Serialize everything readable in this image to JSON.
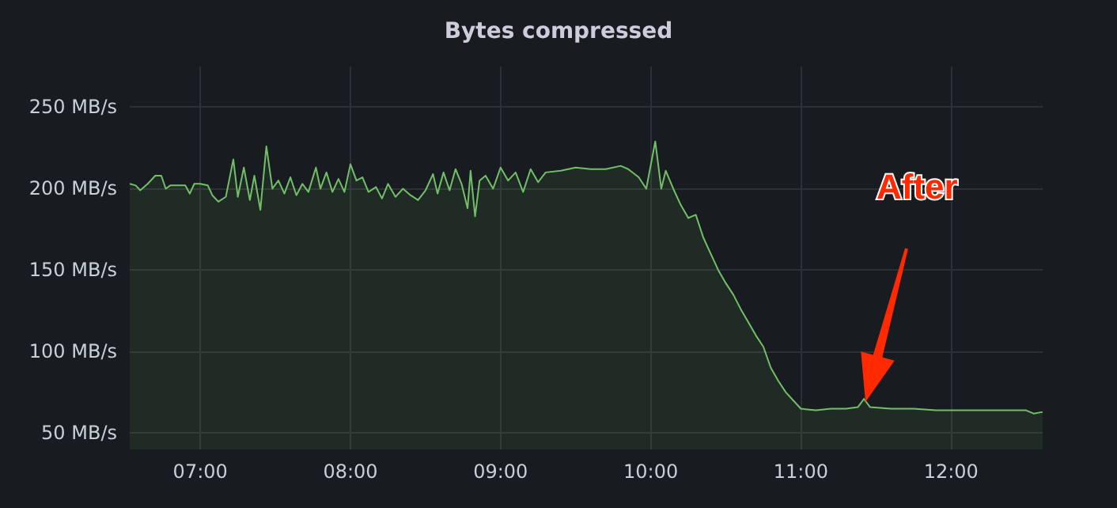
{
  "chart_data": {
    "type": "area",
    "title": "Bytes compressed",
    "color": "#73bf69",
    "grid": true,
    "xlim": [
      6.53,
      12.61
    ],
    "xticks": [
      {
        "value": 7,
        "label": "07:00"
      },
      {
        "value": 8,
        "label": "08:00"
      },
      {
        "value": 9,
        "label": "09:00"
      },
      {
        "value": 10,
        "label": "10:00"
      },
      {
        "value": 11,
        "label": "11:00"
      },
      {
        "value": 12,
        "label": "12:00"
      }
    ],
    "ylim": [
      40,
      275
    ],
    "yticks": [
      {
        "value": 50,
        "label": "50 MB/s"
      },
      {
        "value": 100,
        "label": "100 MB/s"
      },
      {
        "value": 150,
        "label": "150 MB/s"
      },
      {
        "value": 200,
        "label": "200 MB/s"
      },
      {
        "value": 250,
        "label": "250 MB/s"
      }
    ],
    "annotations": [
      "After"
    ],
    "x": [
      6.53,
      6.57,
      6.6,
      6.65,
      6.7,
      6.74,
      6.77,
      6.8,
      6.85,
      6.9,
      6.93,
      6.96,
      7.0,
      7.05,
      7.08,
      7.12,
      7.17,
      7.22,
      7.25,
      7.29,
      7.33,
      7.36,
      7.4,
      7.44,
      7.48,
      7.52,
      7.56,
      7.6,
      7.64,
      7.68,
      7.72,
      7.77,
      7.8,
      7.84,
      7.88,
      7.92,
      7.96,
      8.0,
      8.04,
      8.08,
      8.12,
      8.17,
      8.21,
      8.25,
      8.3,
      8.35,
      8.4,
      8.45,
      8.5,
      8.55,
      8.58,
      8.62,
      8.66,
      8.7,
      8.74,
      8.78,
      8.8,
      8.83,
      8.86,
      8.9,
      8.95,
      9.0,
      9.05,
      9.1,
      9.15,
      9.2,
      9.25,
      9.3,
      9.4,
      9.5,
      9.6,
      9.7,
      9.8,
      9.85,
      9.92,
      9.97,
      10.03,
      10.07,
      10.1,
      10.15,
      10.2,
      10.25,
      10.3,
      10.35,
      10.4,
      10.45,
      10.5,
      10.55,
      10.6,
      10.65,
      10.7,
      10.75,
      10.8,
      10.85,
      10.9,
      10.95,
      11.0,
      11.1,
      11.2,
      11.3,
      11.38,
      11.42,
      11.46,
      11.6,
      11.75,
      11.9,
      12.0,
      12.2,
      12.4,
      12.5,
      12.55,
      12.61
    ],
    "values": [
      203,
      202,
      199,
      203,
      208,
      208,
      200,
      202,
      202,
      202,
      197,
      203,
      203,
      202,
      196,
      192,
      195,
      218,
      195,
      213,
      193,
      208,
      187,
      226,
      200,
      205,
      197,
      207,
      196,
      203,
      198,
      213,
      200,
      210,
      198,
      206,
      198,
      215,
      205,
      207,
      198,
      201,
      194,
      203,
      195,
      200,
      196,
      193,
      199,
      209,
      197,
      210,
      199,
      212,
      203,
      188,
      211,
      183,
      205,
      208,
      200,
      213,
      205,
      210,
      198,
      212,
      204,
      210,
      211,
      213,
      212,
      212,
      214,
      212,
      207,
      200,
      229,
      200,
      211,
      200,
      190,
      182,
      184,
      170,
      160,
      150,
      142,
      135,
      126,
      118,
      110,
      103,
      90,
      82,
      75,
      70,
      65,
      64,
      65,
      65,
      66,
      71,
      66,
      65,
      65,
      64,
      64,
      64,
      64,
      64,
      62,
      63
    ]
  }
}
